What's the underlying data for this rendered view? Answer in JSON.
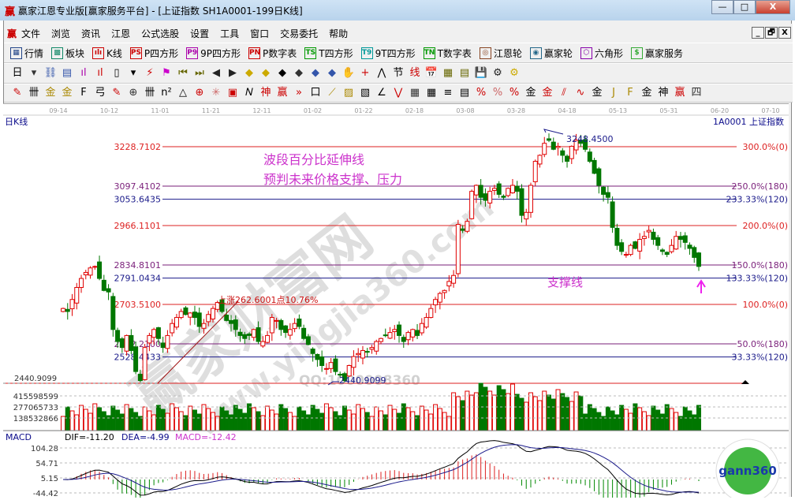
{
  "window": {
    "title": "赢家江恩专业版[赢家服务平台] - [上证指数  SH1A0001-199日K线]",
    "logo": "赢",
    "minimize": "—",
    "maximize": "□",
    "close": "X"
  },
  "menu": {
    "logo": "赢",
    "items": [
      "文件",
      "浏览",
      "资讯",
      "江恩",
      "公式选股",
      "设置",
      "工具",
      "窗口",
      "交易委托",
      "帮助"
    ],
    "mdi": [
      "_",
      "🗗",
      "X"
    ]
  },
  "toolbar1": [
    {
      "label": "行情",
      "icon": "table-icon",
      "glyph": "▦",
      "color": "#224488"
    },
    {
      "label": "板块",
      "icon": "blocks-icon",
      "glyph": "▩",
      "color": "#118866"
    },
    {
      "label": "K线",
      "icon": "candles-icon",
      "glyph": "ılı",
      "color": "#cc0000"
    },
    {
      "label": "P四方形",
      "icon": "ps-icon",
      "glyph": "PS",
      "color": "#cc0000"
    },
    {
      "label": "9P四方形",
      "icon": "p9-icon",
      "glyph": "P9",
      "color": "#aa00aa"
    },
    {
      "label": "P数字表",
      "icon": "pn-icon",
      "glyph": "PN",
      "color": "#cc0000"
    },
    {
      "label": "T四方形",
      "icon": "ts-icon",
      "glyph": "TS",
      "color": "#009900"
    },
    {
      "label": "9T四方形",
      "icon": "t9-icon",
      "glyph": "T9",
      "color": "#009999"
    },
    {
      "label": "T数字表",
      "icon": "tn-icon",
      "glyph": "TN",
      "color": "#009900"
    },
    {
      "label": "江恩轮",
      "icon": "gann-wheel-icon",
      "glyph": "◎",
      "color": "#884422"
    },
    {
      "label": "赢家轮",
      "icon": "big-wheel-icon",
      "glyph": "◉",
      "color": "#226688"
    },
    {
      "label": "六角形",
      "icon": "hexagon-icon",
      "glyph": "⬡",
      "color": "#8800aa"
    },
    {
      "label": "赢家服务",
      "icon": "dollar-icon",
      "glyph": "$",
      "color": "#33aa33"
    }
  ],
  "toolbar2": [
    "日",
    "▾",
    "⛓",
    "▤",
    "ıl",
    "ıl",
    "▯",
    "▾",
    "⚡",
    "⚑",
    "⏮",
    "⏭",
    "◀",
    "▶",
    "◆",
    "◆",
    "◆",
    "◆",
    "◆",
    "◆",
    "✋",
    "+",
    "⋀",
    "节",
    "线",
    "📅",
    "▦",
    "▤",
    "💾",
    "⚙",
    "⚙"
  ],
  "toolbar3": [
    "✎",
    "卌",
    "金",
    "金",
    "F",
    "弓",
    "✎",
    "⊕",
    "卌",
    "n²",
    "△",
    "⊕",
    "✳",
    "▣",
    "𝑁",
    "神",
    "赢",
    "»",
    "口",
    "⟋",
    "▨",
    "▧",
    "∠",
    "⋁",
    "▦",
    "▦",
    "≡",
    "▤",
    "%",
    "%",
    "%",
    "金",
    "金",
    "⫽",
    "∿",
    "金",
    "J",
    "F",
    "金",
    "神",
    "赢",
    "四"
  ],
  "dates": [
    "09-14",
    "10-12",
    "11-01",
    "11-21",
    "12-11",
    "01-02",
    "01-22",
    "02-18",
    "03-08",
    "03-28",
    "04-18",
    "05-13",
    "05-31",
    "06-20",
    "07-10"
  ],
  "chart": {
    "period_label": "日K线",
    "symbol": "1A0001  上证指数",
    "annotation_title": "波段百分比延伸线",
    "annotation_sub": "预判未来价格支撑、压力",
    "support_label": "支撑线",
    "rise_label": "上涨262.6001点10.76%",
    "high_label": "3248.4500",
    "low_label": "2440.9099",
    "low_axis": "2440.9099",
    "watermark_logo": "赢家财富网",
    "watermark_url": "www.yingjia360.com",
    "watermark_qq": "QQ:1000008360",
    "colors": {
      "up": "#e00000",
      "down": "#007700",
      "red_line": "#dd2222",
      "purple_line": "#7a1f7a",
      "navy_line": "#1a1a8a",
      "annotation": "#cc33cc"
    },
    "levels": [
      {
        "price": "3228.7102",
        "pct": "300.0%(0)",
        "kind": "red"
      },
      {
        "price": "3097.4102",
        "pct": "250.0%(180)",
        "kind": "purple"
      },
      {
        "price": "3053.6435",
        "pct": "233.33%(120)",
        "kind": "navy"
      },
      {
        "price": "2966.1101",
        "pct": "200.0%(0)",
        "kind": "red"
      },
      {
        "price": "2834.8101",
        "pct": "150.0%(180)",
        "kind": "purple"
      },
      {
        "price": "2791.0434",
        "pct": "133.33%(120)",
        "kind": "navy"
      },
      {
        "price": "2703.5100",
        "pct": "100.0%(0)",
        "kind": "red"
      },
      {
        "price": "2572.2100",
        "pct": "50.0%(180)",
        "kind": "purple"
      },
      {
        "price": "2528.4433",
        "pct": "33.33%(120)",
        "kind": "navy"
      },
      {
        "price": "2440.9099",
        "pct": "",
        "kind": "red"
      }
    ]
  },
  "volume": {
    "ticks": [
      "415598599",
      "277065733",
      "138532866"
    ]
  },
  "macd": {
    "title": "MACD",
    "dif": "DIF=-11.20",
    "dea": "DEA=-4.99",
    "macd": "MACD=-12.42",
    "ticks": [
      "104.28",
      "54.71",
      "5.15",
      "-44.42"
    ]
  },
  "badge": {
    "text": "gann360"
  },
  "chart_data": {
    "type": "candlestick",
    "y_axis_range": [
      2440.9099,
      3248.45
    ],
    "x_ticks": [
      "09-14",
      "10-12",
      "11-01",
      "11-21",
      "12-11",
      "01-02",
      "01-22",
      "02-18",
      "03-08",
      "03-28",
      "04-18",
      "05-13",
      "05-31",
      "06-20",
      "07-10"
    ],
    "closes": [
      2690,
      2680,
      2720,
      2760,
      2790,
      2810,
      2825,
      2830,
      2790,
      2750,
      2745,
      2620,
      2580,
      2560,
      2600,
      2550,
      2480,
      2450,
      2560,
      2600,
      2620,
      2590,
      2560,
      2600,
      2640,
      2660,
      2680,
      2670,
      2675,
      2660,
      2630,
      2640,
      2670,
      2690,
      2710,
      2680,
      2650,
      2640,
      2620,
      2600,
      2590,
      2600,
      2620,
      2580,
      2580,
      2600,
      2660,
      2650,
      2620,
      2610,
      2620,
      2640,
      2630,
      2590,
      2570,
      2540,
      2520,
      2500,
      2490,
      2510,
      2480,
      2470,
      2450,
      2500,
      2530,
      2540,
      2550,
      2545,
      2560,
      2580,
      2590,
      2600,
      2610,
      2620,
      2600,
      2580,
      2610,
      2620,
      2600,
      2640,
      2660,
      2690,
      2720,
      2740,
      2750,
      2780,
      2800,
      2970,
      2950,
      2980,
      3080,
      3100,
      3060,
      3050,
      3080,
      3090,
      3070,
      3060,
      3090,
      3100,
      3080,
      3000,
      3010,
      3100,
      3180,
      3200,
      3240,
      3250,
      3220,
      3230,
      3200,
      3180,
      3230,
      3250,
      3240,
      3220,
      3180,
      3140,
      3100,
      3070,
      3060,
      2960,
      2900,
      2880,
      2870,
      2900,
      2890,
      2920,
      2930,
      2950,
      2920,
      2900,
      2880,
      2870,
      2900,
      2930,
      2920,
      2910,
      2890,
      2860,
      2830
    ]
  }
}
